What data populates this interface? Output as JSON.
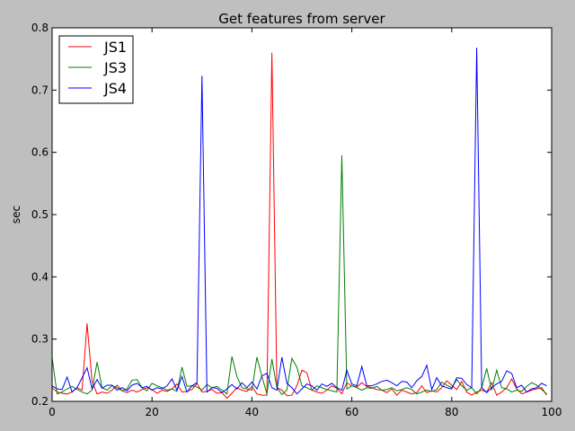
{
  "chart_data": {
    "type": "line",
    "title": "Get features from server",
    "xlabel": "",
    "ylabel": "sec",
    "xlim": [
      0,
      100
    ],
    "ylim": [
      0.2,
      0.8
    ],
    "x_ticks": [
      "0",
      "20",
      "40",
      "60",
      "80",
      "100"
    ],
    "y_ticks": [
      "0.2",
      "0.3",
      "0.4",
      "0.5",
      "0.6",
      "0.7",
      "0.8"
    ],
    "grid": false,
    "legend_position": "top-left",
    "series": [
      {
        "name": "JS1",
        "color": "#ff0000",
        "values": [
          0.222,
          0.215,
          0.213,
          0.212,
          0.215,
          0.222,
          0.218,
          0.325,
          0.232,
          0.212,
          0.215,
          0.213,
          0.218,
          0.226,
          0.217,
          0.214,
          0.218,
          0.215,
          0.219,
          0.222,
          0.219,
          0.213,
          0.218,
          0.216,
          0.22,
          0.228,
          0.215,
          0.216,
          0.219,
          0.229,
          0.215,
          0.216,
          0.219,
          0.213,
          0.214,
          0.205,
          0.213,
          0.222,
          0.218,
          0.216,
          0.224,
          0.212,
          0.21,
          0.21,
          0.76,
          0.222,
          0.218,
          0.209,
          0.21,
          0.225,
          0.25,
          0.246,
          0.218,
          0.215,
          0.213,
          0.218,
          0.225,
          0.221,
          0.212,
          0.23,
          0.225,
          0.223,
          0.23,
          0.224,
          0.222,
          0.219,
          0.218,
          0.214,
          0.22,
          0.21,
          0.218,
          0.215,
          0.212,
          0.214,
          0.225,
          0.214,
          0.217,
          0.215,
          0.222,
          0.233,
          0.226,
          0.219,
          0.232,
          0.215,
          0.21,
          0.215,
          0.218,
          0.215,
          0.23,
          0.21,
          0.215,
          0.222,
          0.236,
          0.22,
          0.212,
          0.215,
          0.218,
          0.22,
          0.222,
          0.21
        ]
      },
      {
        "name": "JS3",
        "color": "#008000",
        "values": [
          0.27,
          0.212,
          0.215,
          0.22,
          0.224,
          0.219,
          0.215,
          0.212,
          0.218,
          0.263,
          0.222,
          0.218,
          0.225,
          0.222,
          0.217,
          0.22,
          0.234,
          0.235,
          0.222,
          0.217,
          0.229,
          0.225,
          0.222,
          0.218,
          0.22,
          0.216,
          0.255,
          0.224,
          0.225,
          0.223,
          0.218,
          0.227,
          0.222,
          0.224,
          0.218,
          0.212,
          0.272,
          0.24,
          0.222,
          0.22,
          0.218,
          0.271,
          0.24,
          0.212,
          0.268,
          0.222,
          0.211,
          0.218,
          0.269,
          0.255,
          0.225,
          0.222,
          0.218,
          0.225,
          0.222,
          0.219,
          0.217,
          0.215,
          0.595,
          0.22,
          0.225,
          0.222,
          0.218,
          0.222,
          0.221,
          0.224,
          0.218,
          0.219,
          0.222,
          0.217,
          0.219,
          0.222,
          0.219,
          0.212,
          0.215,
          0.218,
          0.216,
          0.219,
          0.231,
          0.226,
          0.222,
          0.235,
          0.225,
          0.218,
          0.222,
          0.212,
          0.222,
          0.253,
          0.218,
          0.25,
          0.222,
          0.22,
          0.215,
          0.218,
          0.216,
          0.224,
          0.23,
          0.226,
          0.219,
          0.212
        ]
      },
      {
        "name": "JS4",
        "color": "#0000ff",
        "values": [
          0.225,
          0.22,
          0.219,
          0.239,
          0.215,
          0.222,
          0.238,
          0.254,
          0.22,
          0.235,
          0.221,
          0.226,
          0.226,
          0.218,
          0.222,
          0.217,
          0.226,
          0.229,
          0.222,
          0.224,
          0.218,
          0.222,
          0.22,
          0.225,
          0.236,
          0.218,
          0.24,
          0.215,
          0.225,
          0.23,
          0.723,
          0.215,
          0.222,
          0.221,
          0.214,
          0.22,
          0.227,
          0.22,
          0.23,
          0.222,
          0.231,
          0.22,
          0.241,
          0.245,
          0.222,
          0.218,
          0.271,
          0.229,
          0.222,
          0.212,
          0.22,
          0.228,
          0.225,
          0.218,
          0.228,
          0.224,
          0.229,
          0.222,
          0.218,
          0.25,
          0.228,
          0.225,
          0.256,
          0.225,
          0.225,
          0.228,
          0.232,
          0.234,
          0.23,
          0.225,
          0.232,
          0.231,
          0.222,
          0.233,
          0.24,
          0.258,
          0.219,
          0.238,
          0.225,
          0.222,
          0.22,
          0.238,
          0.237,
          0.227,
          0.222,
          0.768,
          0.222,
          0.214,
          0.222,
          0.228,
          0.232,
          0.249,
          0.245,
          0.222,
          0.226,
          0.215,
          0.22,
          0.222,
          0.229,
          0.225
        ]
      }
    ]
  }
}
